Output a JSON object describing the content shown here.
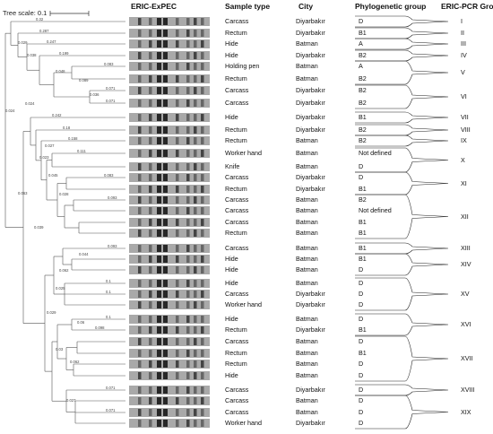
{
  "headers": {
    "gel": "ERIC-ExPEC",
    "sample_type": "Sample type",
    "city": "City",
    "phylo": "Phylogenetic group",
    "eric_pcr": "ERIC-PCR Group"
  },
  "tree_scale_label": "Tree scale: 0.1",
  "rows": [
    {
      "sample": "Carcass",
      "city": "Diyarbakır",
      "phylo": "D"
    },
    {
      "sample": "Rectum",
      "city": "Diyarbakır",
      "phylo": "B1"
    },
    {
      "sample": "Hide",
      "city": "Batman",
      "phylo": "A"
    },
    {
      "sample": "Hide",
      "city": "Diyarbakır",
      "phylo": "B2"
    },
    {
      "sample": "Holding pen",
      "city": "Batman",
      "phylo": "A"
    },
    {
      "sample": "Rectum",
      "city": "Batman",
      "phylo": "B2"
    },
    {
      "sample": "Carcass",
      "city": "Diyarbakır",
      "phylo": "B2"
    },
    {
      "sample": "Carcass",
      "city": "Diyarbakır",
      "phylo": "B2"
    },
    {
      "sample": "Hide",
      "city": "Diyarbakır",
      "phylo": "B1"
    },
    {
      "sample": "Rectum",
      "city": "Diyarbakır",
      "phylo": "B2"
    },
    {
      "sample": "Rectum",
      "city": "Batman",
      "phylo": "B2"
    },
    {
      "sample": "Worker hand",
      "city": "Batman",
      "phylo": "Not defined"
    },
    {
      "sample": "Knife",
      "city": "Batman",
      "phylo": "D"
    },
    {
      "sample": "Carcass",
      "city": "Diyarbakır",
      "phylo": "D"
    },
    {
      "sample": "Rectum",
      "city": "Diyarbakır",
      "phylo": "B1"
    },
    {
      "sample": "Carcass",
      "city": "Batman",
      "phylo": "B2"
    },
    {
      "sample": "Carcass",
      "city": "Batman",
      "phylo": "Not defined"
    },
    {
      "sample": "Carcass",
      "city": "Batman",
      "phylo": "B1"
    },
    {
      "sample": "Rectum",
      "city": "Batman",
      "phylo": "B1"
    },
    {
      "sample": "Carcass",
      "city": "Batman",
      "phylo": "B1"
    },
    {
      "sample": "Hide",
      "city": "Batman",
      "phylo": "B1"
    },
    {
      "sample": "Hide",
      "city": "Batman",
      "phylo": "D"
    },
    {
      "sample": "Hide",
      "city": "Batman",
      "phylo": "D"
    },
    {
      "sample": "Carcass",
      "city": "Diyarbakır",
      "phylo": "D"
    },
    {
      "sample": "Worker hand",
      "city": "Diyarbakır",
      "phylo": "D"
    },
    {
      "sample": "Hide",
      "city": "Batman",
      "phylo": "D"
    },
    {
      "sample": "Rectum",
      "city": "Diyarbakır",
      "phylo": "B1"
    },
    {
      "sample": "Carcass",
      "city": "Batman",
      "phylo": "D"
    },
    {
      "sample": "Rectum",
      "city": "Batman",
      "phylo": "B1"
    },
    {
      "sample": "Rectum",
      "city": "Batman",
      "phylo": "D"
    },
    {
      "sample": "Hide",
      "city": "Batman",
      "phylo": "D"
    },
    {
      "sample": "Carcass",
      "city": "Diyarbakır",
      "phylo": "D"
    },
    {
      "sample": "Carcass",
      "city": "Batman",
      "phylo": "D"
    },
    {
      "sample": "Carcass",
      "city": "Batman",
      "phylo": "D"
    },
    {
      "sample": "Worker hand",
      "city": "Diyarbakır",
      "phylo": "D"
    }
  ],
  "eric_groups": [
    {
      "label": "I",
      "rows": [
        0
      ]
    },
    {
      "label": "II",
      "rows": [
        1
      ]
    },
    {
      "label": "III",
      "rows": [
        2
      ]
    },
    {
      "label": "IV",
      "rows": [
        3
      ]
    },
    {
      "label": "V",
      "rows": [
        4,
        5
      ]
    },
    {
      "label": "VI",
      "rows": [
        6,
        7
      ]
    },
    {
      "label": "VII",
      "rows": [
        8
      ]
    },
    {
      "label": "VIII",
      "rows": [
        9
      ]
    },
    {
      "label": "IX",
      "rows": [
        10
      ]
    },
    {
      "label": "X",
      "rows": [
        11,
        12
      ]
    },
    {
      "label": "XI",
      "rows": [
        13,
        14
      ]
    },
    {
      "label": "XII",
      "rows": [
        15,
        16,
        17,
        18
      ]
    },
    {
      "label": "XIII",
      "rows": [
        19
      ]
    },
    {
      "label": "XIV",
      "rows": [
        20,
        21
      ]
    },
    {
      "label": "XV",
      "rows": [
        22,
        23,
        24
      ]
    },
    {
      "label": "XVI",
      "rows": [
        25,
        26
      ]
    },
    {
      "label": "XVII",
      "rows": [
        27,
        28,
        29,
        30
      ]
    },
    {
      "label": "XVIII",
      "rows": [
        31
      ]
    },
    {
      "label": "XIX",
      "rows": [
        32,
        33,
        34
      ]
    }
  ],
  "branch_lengths": [
    "0.32",
    "0.287",
    "0.247",
    "0.199",
    "0.083",
    "0.089",
    "0.071",
    "0.071",
    "0.036",
    "0.048",
    "0.038",
    "0.029",
    "0.242",
    "0.18",
    "0.158",
    "0.111",
    "0.083",
    "0.093",
    "0.028",
    "0.045",
    "0.023",
    "0.027",
    "0.024",
    "0.044",
    "0.093",
    "0.1",
    "0.1",
    "0.025",
    "0.062",
    "0.06",
    "0.1",
    "0.098",
    "0.062",
    "0.03",
    "0.071",
    "0.071",
    "0.027",
    "0.029",
    "0.039",
    "0.063",
    "0.024"
  ]
}
